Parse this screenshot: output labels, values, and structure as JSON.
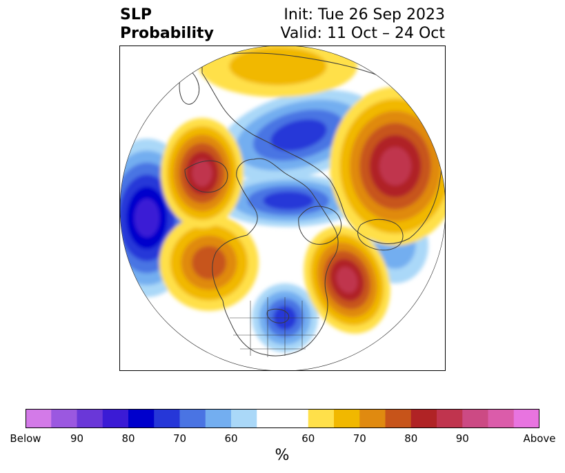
{
  "title": {
    "variable_line1": "SLP",
    "variable_line2": "Probability",
    "init": "Init: Tue 26 Sep 2023",
    "valid": "Valid: 11 Oct – 24 Oct"
  },
  "map": {
    "projection": "north-polar-stereographic",
    "features": [
      {
        "label": "Strong below-normal anomaly over North Pacific",
        "category": "below",
        "level": 80
      },
      {
        "label": "Below-normal anomaly over Arctic / northern Siberia",
        "category": "below",
        "level": 70
      },
      {
        "label": "Below-normal anomaly over Canadian Arctic",
        "category": "below",
        "level": 70
      },
      {
        "label": "Below-normal anomaly over Great Lakes region",
        "category": "below",
        "level": 70
      },
      {
        "label": "Below-normal anomaly over central North Atlantic",
        "category": "below",
        "level": 60
      },
      {
        "label": "Above-normal anomaly over western North Atlantic",
        "category": "above",
        "level": 80
      },
      {
        "label": "Above-normal anomaly over Gulf of Alaska",
        "category": "above",
        "level": 70
      },
      {
        "label": "Above-normal anomaly over Kamchatka / Bering Sea",
        "category": "above",
        "level": 80
      },
      {
        "label": "Above-normal anomaly over Scandinavia / western Russia",
        "category": "above",
        "level": 80
      },
      {
        "label": "Above-normal anomaly over central Siberia",
        "category": "above",
        "level": 60
      }
    ]
  },
  "colorbar": {
    "unit": "%",
    "tick_labels": [
      "Below",
      "90",
      "80",
      "70",
      "60",
      "60",
      "70",
      "80",
      "90",
      "Above"
    ],
    "colors": [
      "#d37ae8",
      "#9b58e0",
      "#6a37d8",
      "#3b1bd5",
      "#0000cc",
      "#2637d8",
      "#4a74e3",
      "#73aef0",
      "#aad8f8",
      "#ffffff",
      "#ffffff",
      "#ffe04a",
      "#f1b800",
      "#e08a10",
      "#c7541a",
      "#b02325",
      "#c0344e",
      "#cc4a84",
      "#db5caa",
      "#e874e0"
    ]
  }
}
